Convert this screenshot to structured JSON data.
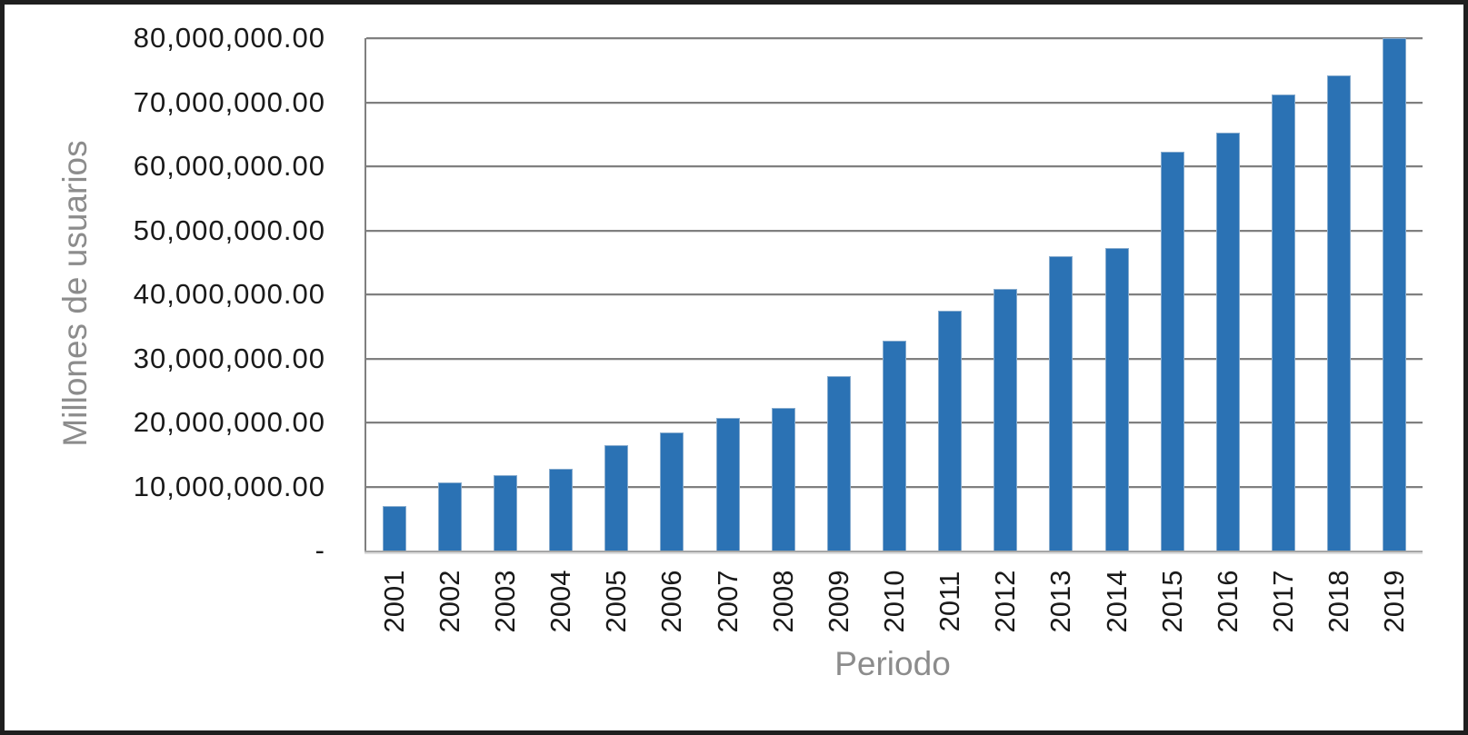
{
  "chart_data": {
    "type": "bar",
    "title": "",
    "xlabel": "Periodo",
    "ylabel": "Millones de usuarios",
    "categories": [
      "2001",
      "2002",
      "2003",
      "2004",
      "2005",
      "2006",
      "2007",
      "2008",
      "2009",
      "2010",
      "2011",
      "2012",
      "2013",
      "2014",
      "2015",
      "2016",
      "2017",
      "2018",
      "2019"
    ],
    "values": [
      7000000,
      10600000,
      11800000,
      12700000,
      16400000,
      18400000,
      20700000,
      22200000,
      27300000,
      32700000,
      37500000,
      40900000,
      46000000,
      47300000,
      62300000,
      65300000,
      71200000,
      74200000,
      80000000
    ],
    "ylim": [
      0,
      80000000
    ],
    "y_ticks": [
      0,
      10000000,
      20000000,
      30000000,
      40000000,
      50000000,
      60000000,
      70000000,
      80000000
    ],
    "y_tick_labels": [
      "-",
      "10,000,000.00",
      "20,000,000.00",
      "30,000,000.00",
      "40,000,000.00",
      "50,000,000.00",
      "60,000,000.00",
      "70,000,000.00",
      "80,000,000.00"
    ],
    "grid": true,
    "legend": "none",
    "colors": {
      "bar": "#2b72b4",
      "gridline": "#7f7f7f",
      "baseline": "#a6a6a6",
      "axis_line": "#7f7f7f",
      "tick_text": "#1a1a1a",
      "axis_title_text": "#8c8c8c",
      "frame_border": "#1f1f1f",
      "background": "#ffffff"
    }
  }
}
